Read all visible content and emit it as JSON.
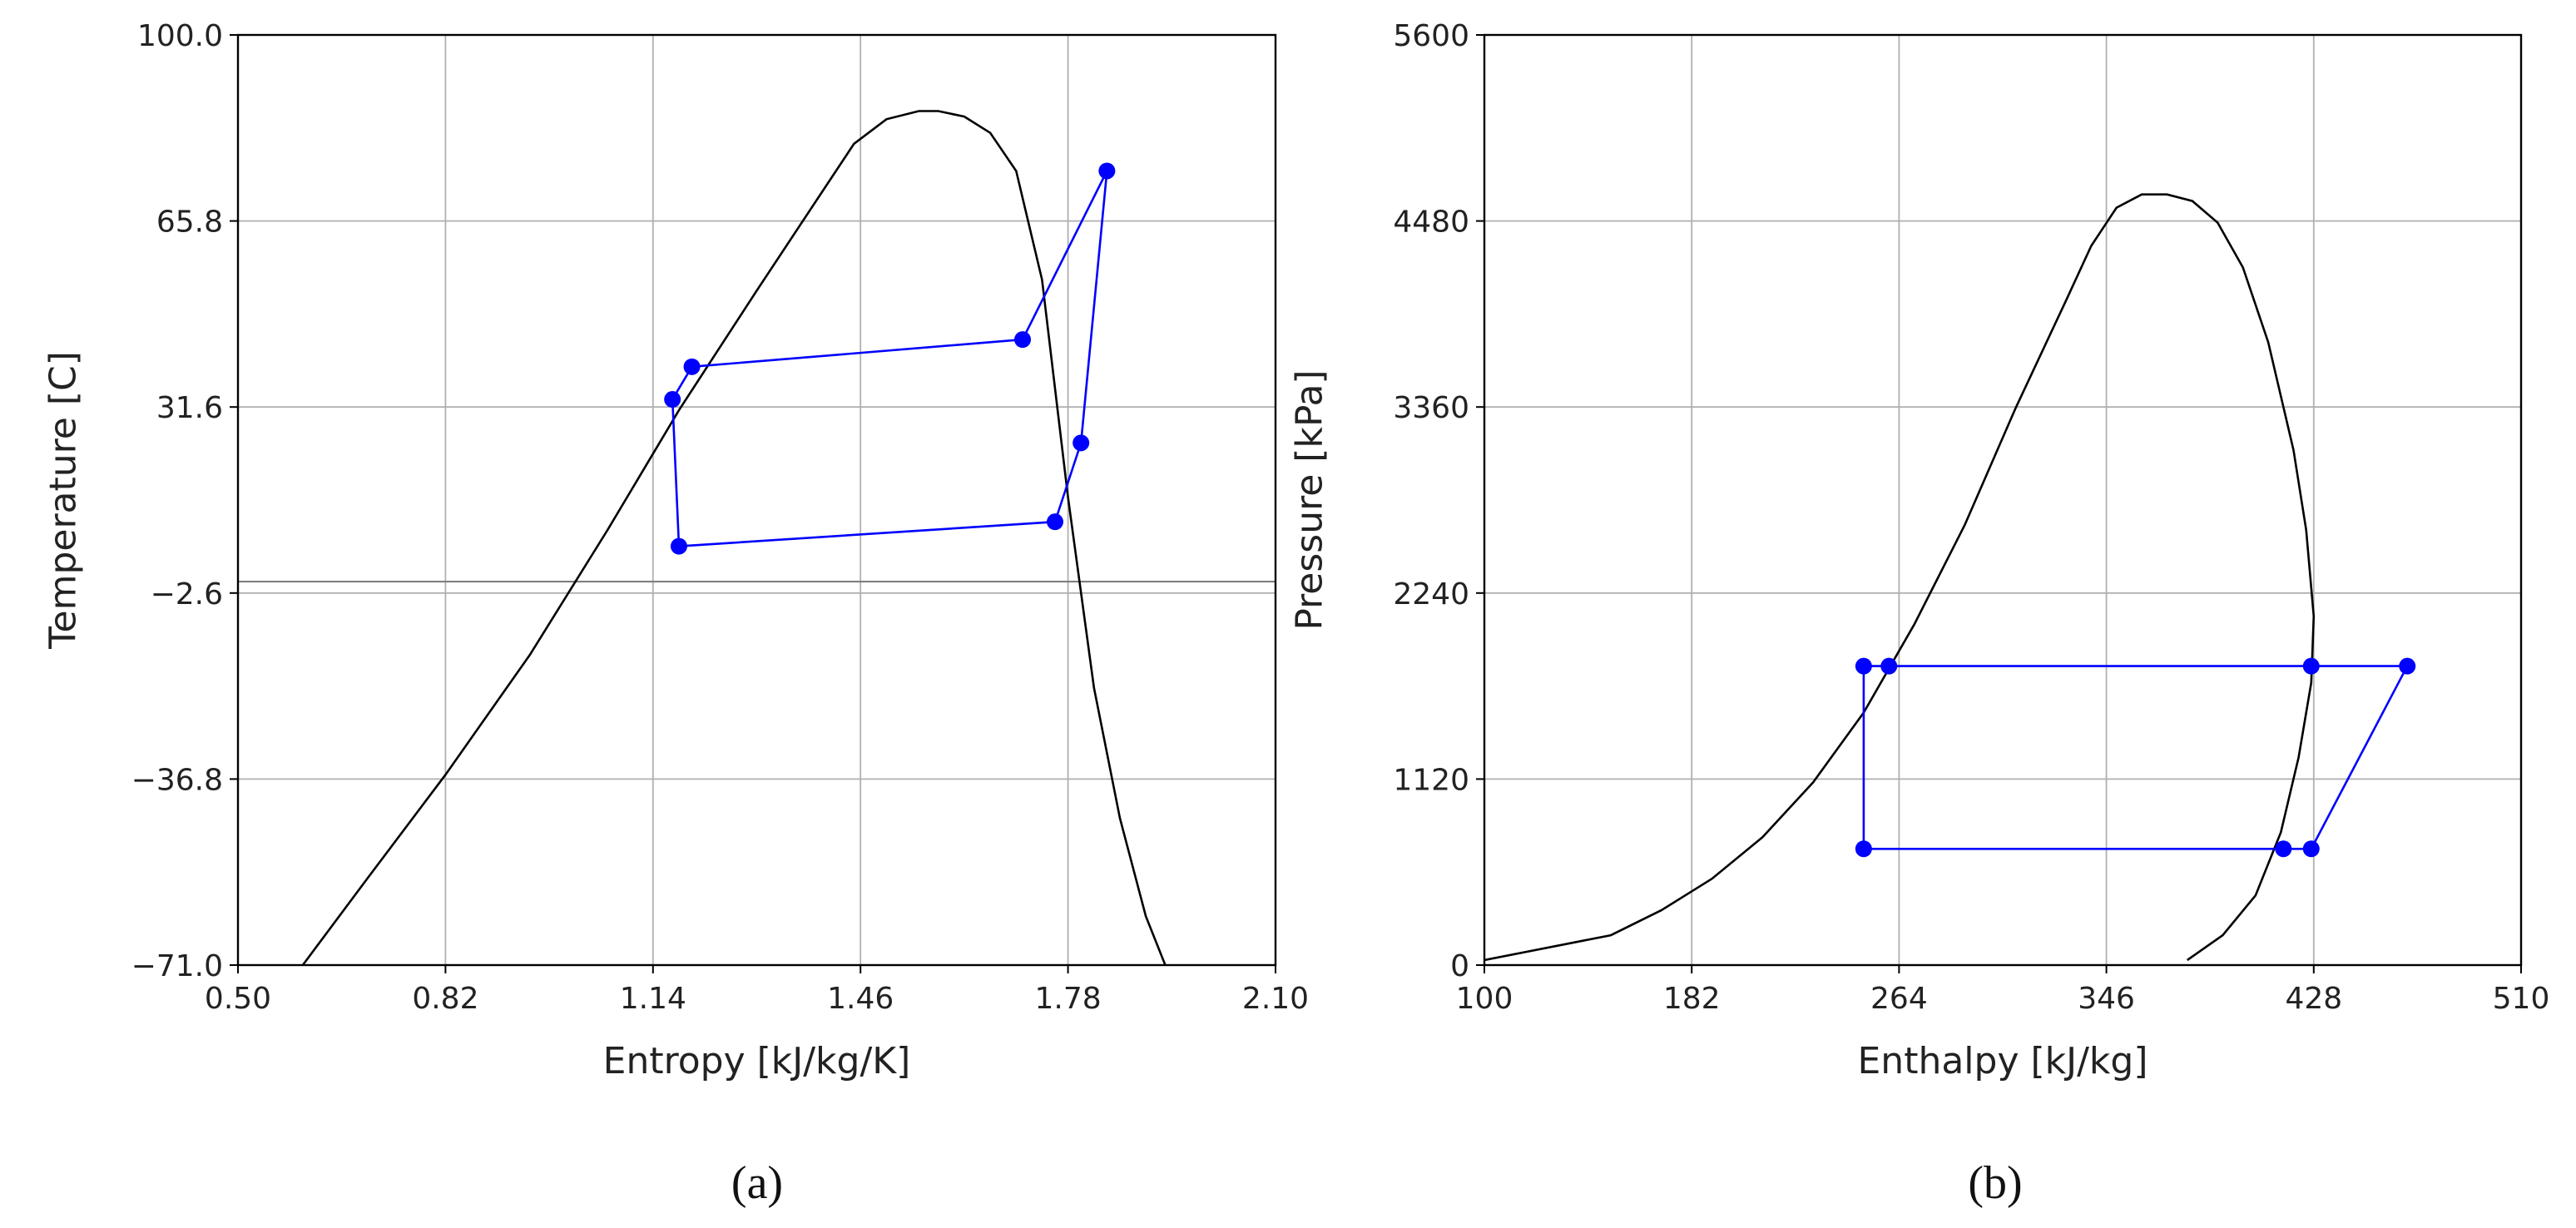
{
  "chart_data": [
    {
      "type": "line",
      "caption": "(a)",
      "xlabel": "Entropy [kJ/kg/K]",
      "ylabel": "Temperature [C]",
      "xlim": [
        0.5,
        2.1
      ],
      "ylim": [
        -71.0,
        100.0
      ],
      "xticks": [
        "0.50",
        "0.82",
        "1.14",
        "1.46",
        "1.78",
        "2.10"
      ],
      "yticks": [
        "−71.0",
        "−36.8",
        "−2.6",
        "31.6",
        "65.8",
        "100.0"
      ],
      "grid": true,
      "reference_line_y": -0.5,
      "colors": {
        "dome": "#000000",
        "cycle": "#0000ff",
        "grid": "#b0b0b0",
        "reference": "#7f7f7f"
      },
      "series": [
        {
          "kind": "dome",
          "x": [
            0.6,
            0.7,
            0.82,
            0.95,
            1.07,
            1.18,
            1.3,
            1.4,
            1.45,
            1.5,
            1.55,
            1.58,
            1.62,
            1.66,
            1.7,
            1.74,
            1.78,
            1.82,
            1.86,
            1.9,
            1.93
          ],
          "y": [
            -71.0,
            -55.0,
            -36.0,
            -14.0,
            9.0,
            31.0,
            53.0,
            71.0,
            80.0,
            84.5,
            86.0,
            86.0,
            85.0,
            82.0,
            75.0,
            55.0,
            15.0,
            -20.0,
            -44.0,
            -62.0,
            -71.0
          ]
        },
        {
          "kind": "cycle",
          "x": [
            1.8,
            1.76,
            1.18,
            1.17,
            1.2,
            1.71,
            1.84,
            1.8
          ],
          "y": [
            25.0,
            10.5,
            6.0,
            33.0,
            39.0,
            44.0,
            75.0,
            25.0
          ],
          "markers_x": [
            1.8,
            1.76,
            1.18,
            1.17,
            1.2,
            1.71,
            1.84
          ],
          "markers_y": [
            25.0,
            10.5,
            6.0,
            33.0,
            39.0,
            44.0,
            75.0
          ]
        }
      ]
    },
    {
      "type": "line",
      "caption": "(b)",
      "xlabel": "Enthalpy [kJ/kg]",
      "ylabel": "Pressure [kPa]",
      "xlim": [
        100,
        510
      ],
      "ylim": [
        0,
        5600
      ],
      "xticks": [
        "100",
        "182",
        "264",
        "346",
        "428",
        "510"
      ],
      "yticks": [
        "0",
        "1120",
        "2240",
        "3360",
        "4480",
        "5600"
      ],
      "grid": true,
      "colors": {
        "dome": "#000000",
        "cycle": "#0000ff",
        "grid": "#b0b0b0"
      },
      "series": [
        {
          "kind": "dome",
          "x": [
            100,
            150,
            170,
            190,
            210,
            230,
            250,
            270,
            290,
            310,
            330,
            340,
            350,
            360,
            370,
            380,
            390,
            400,
            410,
            420,
            425,
            428,
            427,
            422,
            415,
            405,
            392,
            378
          ],
          "y": [
            30,
            180,
            330,
            520,
            770,
            1100,
            1520,
            2050,
            2650,
            3350,
            4000,
            4330,
            4560,
            4640,
            4640,
            4600,
            4470,
            4200,
            3750,
            3100,
            2620,
            2100,
            1700,
            1250,
            800,
            420,
            180,
            30
          ]
        },
        {
          "kind": "cycle",
          "x": [
            250,
            250,
            260,
            427,
            465,
            427,
            416,
            250
          ],
          "y": [
            700,
            1800,
            1800,
            1800,
            1800,
            700,
            700,
            700
          ],
          "markers_x": [
            250,
            250,
            260,
            427,
            465,
            427,
            416
          ],
          "markers_y": [
            700,
            1800,
            1800,
            1800,
            1800,
            700,
            700
          ]
        }
      ]
    }
  ]
}
